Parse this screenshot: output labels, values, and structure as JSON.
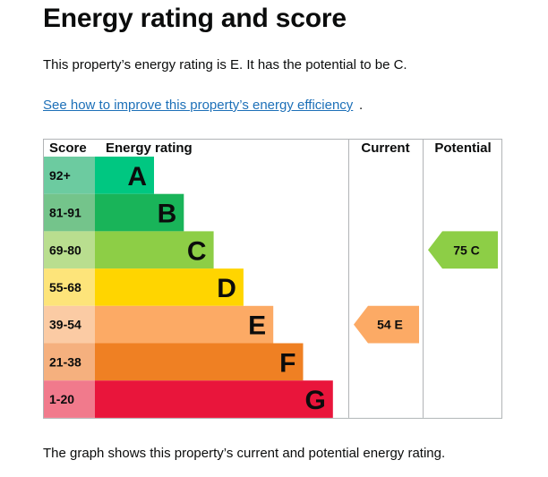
{
  "page": {
    "title": "Energy rating and score",
    "summary": "This property’s energy rating is E. It has the potential to be C.",
    "link_text": "See how to improve this property’s energy efficiency",
    "link_suffix": ".",
    "footnote": "The graph shows this property’s current and potential energy rating."
  },
  "chart_data": {
    "type": "bar",
    "columns": {
      "score": "Score",
      "rating": "Energy rating",
      "current": "Current",
      "potential": "Potential"
    },
    "bands": [
      {
        "score": "92+",
        "letter": "A",
        "color": "#00c781",
        "light": "#6ccba0",
        "order": 1
      },
      {
        "score": "81-91",
        "letter": "B",
        "color": "#19b459",
        "light": "#74c48b",
        "order": 2
      },
      {
        "score": "69-80",
        "letter": "C",
        "color": "#8dce46",
        "light": "#b9de8f",
        "order": 3
      },
      {
        "score": "55-68",
        "letter": "D",
        "color": "#ffd500",
        "light": "#fde47a",
        "order": 4
      },
      {
        "score": "39-54",
        "letter": "E",
        "color": "#fcaa65",
        "light": "#fbcba4",
        "order": 5
      },
      {
        "score": "21-38",
        "letter": "F",
        "color": "#ef8023",
        "light": "#f5b07e",
        "order": 6
      },
      {
        "score": "1-20",
        "letter": "G",
        "color": "#e9153b",
        "light": "#f17a8c",
        "order": 7
      }
    ],
    "current": {
      "value": 54,
      "letter": "E",
      "label": "54 E",
      "color": "#fcaa65"
    },
    "potential": {
      "value": 75,
      "letter": "C",
      "label": "75 C",
      "color": "#8dce46"
    }
  }
}
